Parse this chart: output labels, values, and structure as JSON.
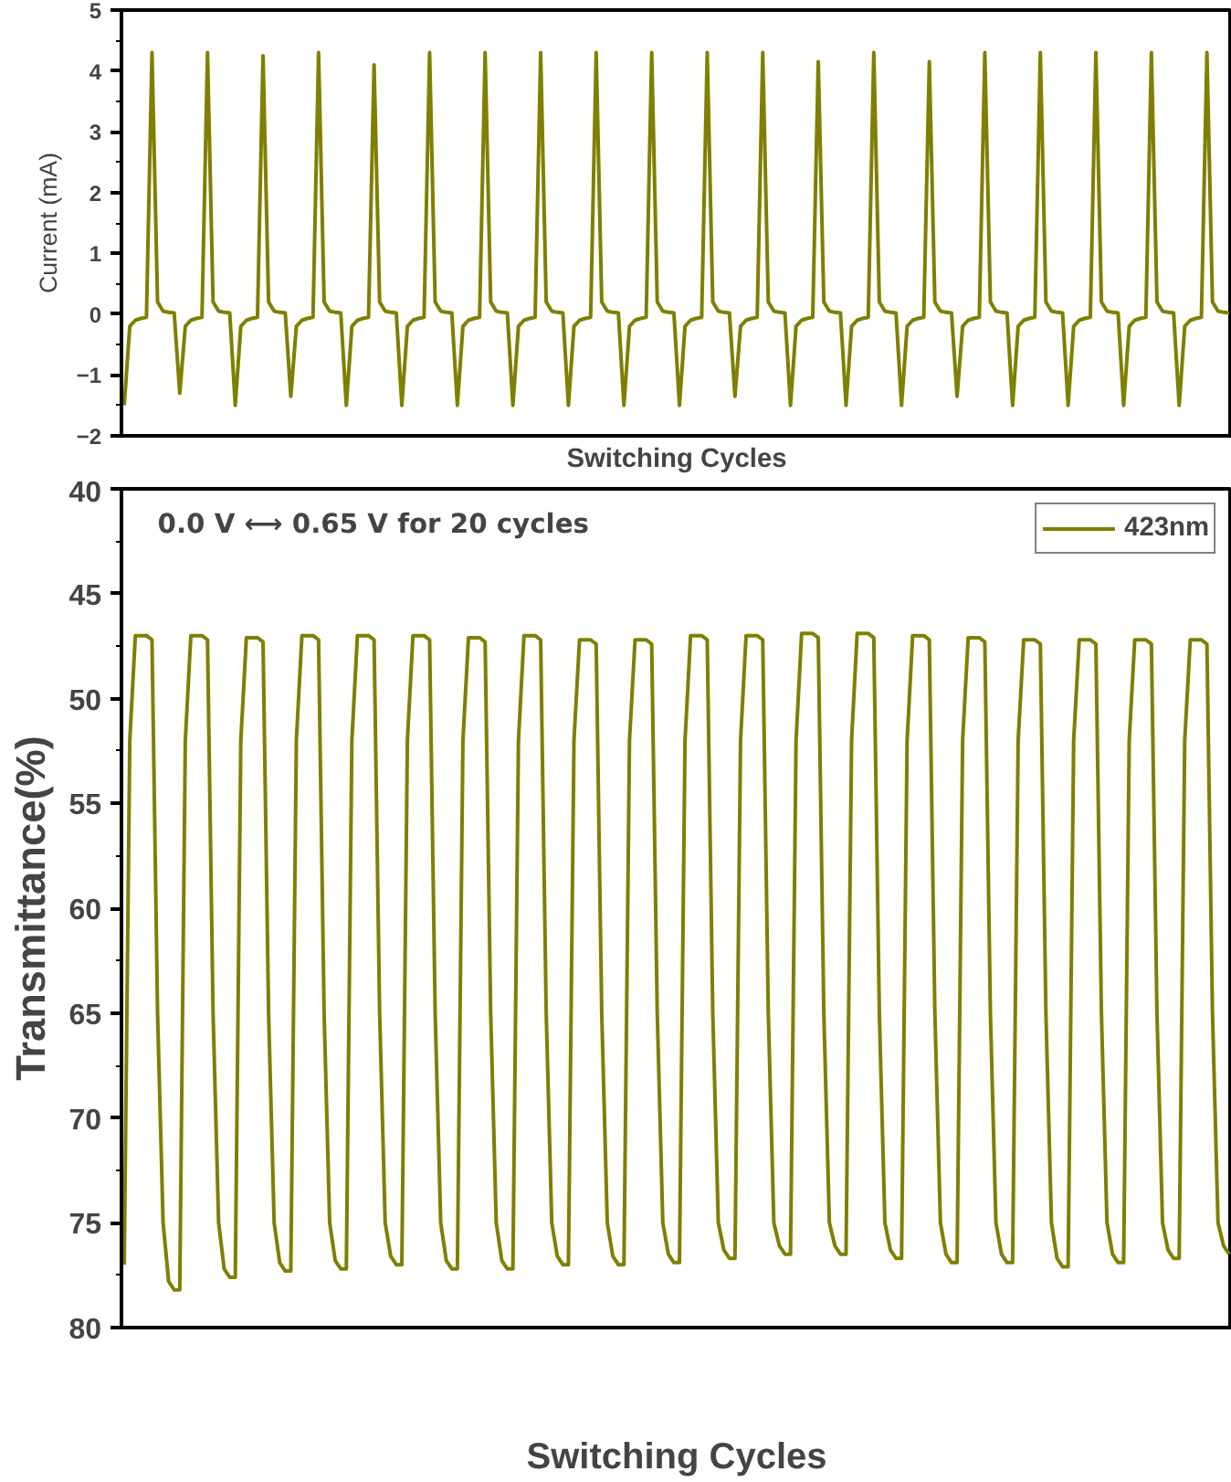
{
  "chart_data": [
    {
      "type": "line",
      "xlabel": "Switching Cycles",
      "ylabel": "Current (mA)",
      "ylim": [
        -2,
        5
      ],
      "yticks": [
        -2,
        -1,
        0,
        1,
        2,
        3,
        4,
        5
      ],
      "grid": false,
      "legend": false,
      "categories": [
        null,
        null,
        null,
        null,
        null,
        null,
        null,
        null,
        null,
        null,
        null,
        null,
        null,
        null,
        null,
        null,
        null,
        null,
        null,
        null,
        null,
        null,
        null,
        null,
        null,
        null,
        null,
        null,
        null,
        null,
        null,
        null,
        null,
        null,
        null,
        null,
        null,
        null,
        null,
        null,
        null,
        null,
        null,
        null,
        null,
        null,
        null,
        null,
        null,
        null,
        null,
        null,
        null,
        null,
        null,
        null,
        null,
        null,
        null,
        null,
        null,
        null,
        null,
        null,
        null,
        null,
        null,
        null,
        null,
        null,
        null,
        null,
        null,
        null,
        null,
        null,
        null,
        null,
        null,
        null,
        null,
        null,
        null,
        null,
        null,
        null,
        null,
        null,
        null,
        null,
        null,
        null,
        null,
        null,
        null,
        null,
        null,
        null,
        null,
        null,
        null,
        null,
        null,
        null,
        null,
        null,
        null,
        null,
        null,
        null,
        null,
        null,
        null,
        null,
        null,
        null,
        null,
        null,
        null,
        null,
        null,
        null,
        null,
        null,
        null,
        null,
        null,
        null,
        null,
        null,
        null,
        null,
        null,
        null,
        null,
        null,
        null,
        null,
        null,
        null,
        null,
        null,
        null,
        null,
        null,
        null,
        null,
        null,
        null,
        null,
        null,
        null,
        null,
        null,
        null,
        null,
        null,
        null,
        null,
        null,
        null,
        null,
        null,
        null,
        null,
        null,
        null,
        null,
        null,
        null,
        null,
        null,
        null,
        null,
        null,
        null,
        null,
        null,
        null,
        null,
        null,
        null,
        null,
        null,
        null,
        null,
        null,
        null,
        null,
        null,
        null,
        null,
        null,
        null,
        null,
        null,
        null,
        null,
        null,
        null
      ],
      "series": [
        {
          "color": "#7f7f00",
          "values": [
            -1.5,
            -0.2,
            -0.1,
            -0.07,
            -0.05,
            4.3,
            0.2,
            0.05,
            0.03,
            0.02,
            -1.3,
            -0.2,
            -0.1,
            -0.07,
            -0.05,
            4.3,
            0.2,
            0.05,
            0.03,
            0.02,
            -1.5,
            -0.2,
            -0.1,
            -0.07,
            -0.05,
            4.25,
            0.2,
            0.05,
            0.03,
            0.02,
            -1.35,
            -0.2,
            -0.1,
            -0.07,
            -0.05,
            4.3,
            0.2,
            0.05,
            0.03,
            0.02,
            -1.5,
            -0.2,
            -0.1,
            -0.07,
            -0.05,
            4.1,
            0.2,
            0.05,
            0.03,
            0.02,
            -1.5,
            -0.2,
            -0.1,
            -0.07,
            -0.05,
            4.3,
            0.2,
            0.05,
            0.03,
            0.02,
            -1.5,
            -0.2,
            -0.1,
            -0.07,
            -0.05,
            4.3,
            0.2,
            0.05,
            0.03,
            0.02,
            -1.5,
            -0.2,
            -0.1,
            -0.07,
            -0.05,
            4.3,
            0.2,
            0.05,
            0.03,
            0.02,
            -1.5,
            -0.2,
            -0.1,
            -0.07,
            -0.05,
            4.3,
            0.2,
            0.05,
            0.03,
            0.02,
            -1.5,
            -0.2,
            -0.1,
            -0.07,
            -0.05,
            4.3,
            0.2,
            0.05,
            0.03,
            0.02,
            -1.5,
            -0.2,
            -0.1,
            -0.07,
            -0.05,
            4.3,
            0.2,
            0.05,
            0.03,
            0.02,
            -1.35,
            -0.2,
            -0.1,
            -0.07,
            -0.05,
            4.3,
            0.2,
            0.05,
            0.03,
            0.02,
            -1.5,
            -0.2,
            -0.1,
            -0.07,
            -0.05,
            4.15,
            0.2,
            0.05,
            0.03,
            0.02,
            -1.5,
            -0.2,
            -0.1,
            -0.07,
            -0.05,
            4.3,
            0.2,
            0.05,
            0.03,
            0.02,
            -1.5,
            -0.2,
            -0.1,
            -0.07,
            -0.05,
            4.15,
            0.2,
            0.05,
            0.03,
            0.02,
            -1.35,
            -0.2,
            -0.1,
            -0.07,
            -0.05,
            4.3,
            0.2,
            0.05,
            0.03,
            0.02,
            -1.5,
            -0.2,
            -0.1,
            -0.07,
            -0.05,
            4.3,
            0.2,
            0.05,
            0.03,
            0.02,
            -1.5,
            -0.2,
            -0.1,
            -0.07,
            -0.05,
            4.3,
            0.2,
            0.05,
            0.03,
            0.02,
            -1.5,
            -0.2,
            -0.1,
            -0.07,
            -0.05,
            4.3,
            0.2,
            0.05,
            0.03,
            0.02,
            -1.5,
            -0.2,
            -0.1,
            -0.07,
            -0.05,
            4.3,
            0.2,
            0.05,
            0.03,
            0.02
          ]
        }
      ]
    },
    {
      "type": "line",
      "xlabel": "Switching Cycles",
      "ylabel": "Transmittance(%)",
      "ylim": [
        80,
        40
      ],
      "yticks": [
        40,
        45,
        50,
        55,
        60,
        65,
        70,
        75,
        80
      ],
      "grid": false,
      "legend": "top right",
      "annotations": [
        "0.0 V ⟷ 0.65 V for 20 cycles"
      ],
      "categories": [
        null,
        null,
        null,
        null,
        null,
        null,
        null,
        null,
        null,
        null,
        null,
        null,
        null,
        null,
        null,
        null,
        null,
        null,
        null,
        null,
        null,
        null,
        null,
        null,
        null,
        null,
        null,
        null,
        null,
        null,
        null,
        null,
        null,
        null,
        null,
        null,
        null,
        null,
        null,
        null,
        null,
        null,
        null,
        null,
        null,
        null,
        null,
        null,
        null,
        null,
        null,
        null,
        null,
        null,
        null,
        null,
        null,
        null,
        null,
        null,
        null,
        null,
        null,
        null,
        null,
        null,
        null,
        null,
        null,
        null,
        null,
        null,
        null,
        null,
        null,
        null,
        null,
        null,
        null,
        null,
        null,
        null,
        null,
        null,
        null,
        null,
        null,
        null,
        null,
        null,
        null,
        null,
        null,
        null,
        null,
        null,
        null,
        null,
        null,
        null,
        null,
        null,
        null,
        null,
        null,
        null,
        null,
        null,
        null,
        null,
        null,
        null,
        null,
        null,
        null,
        null,
        null,
        null,
        null,
        null,
        null,
        null,
        null,
        null,
        null,
        null,
        null,
        null,
        null,
        null,
        null,
        null,
        null,
        null,
        null,
        null,
        null,
        null,
        null,
        null,
        null,
        null,
        null,
        null,
        null,
        null,
        null,
        null,
        null,
        null,
        null,
        null,
        null,
        null,
        null,
        null,
        null,
        null,
        null,
        null,
        null,
        null,
        null,
        null,
        null,
        null,
        null,
        null,
        null,
        null,
        null,
        null,
        null,
        null,
        null,
        null,
        null,
        null,
        null,
        null,
        null,
        null,
        null,
        null,
        null,
        null,
        null,
        null,
        null,
        null,
        null,
        null,
        null,
        null,
        null,
        null,
        null,
        null,
        null,
        null
      ],
      "series": [
        {
          "name": "423nm",
          "color": "#7f7f00",
          "values": [
            77,
            52,
            47.0,
            47.0,
            47.0,
            47.2,
            65,
            75,
            77.8,
            78.2,
            78.2,
            52,
            47.0,
            47.0,
            47.0,
            47.2,
            65,
            75,
            77.2,
            77.6,
            77.6,
            52,
            47.1,
            47.1,
            47.1,
            47.3,
            65,
            75,
            76.9,
            77.3,
            77.3,
            52,
            47.0,
            47.0,
            47.0,
            47.2,
            65,
            75,
            76.8,
            77.2,
            77.2,
            52,
            47.0,
            47.0,
            47.0,
            47.2,
            65,
            75,
            76.6,
            77.0,
            77.0,
            52,
            47.0,
            47.0,
            47.0,
            47.2,
            65,
            75,
            76.8,
            77.2,
            77.2,
            52,
            47.1,
            47.1,
            47.1,
            47.3,
            65,
            75,
            76.8,
            77.2,
            77.2,
            52,
            47.0,
            47.0,
            47.0,
            47.2,
            65,
            75,
            76.6,
            77.0,
            77.0,
            52,
            47.2,
            47.2,
            47.2,
            47.4,
            65,
            75,
            76.6,
            77.0,
            77.0,
            52,
            47.2,
            47.2,
            47.2,
            47.4,
            65,
            75,
            76.5,
            76.9,
            76.9,
            52,
            47.0,
            47.0,
            47.0,
            47.2,
            65,
            75,
            76.3,
            76.7,
            76.7,
            52,
            47.0,
            47.0,
            47.0,
            47.2,
            65,
            75,
            76.1,
            76.5,
            76.5,
            52,
            46.9,
            46.9,
            46.9,
            47.1,
            65,
            75,
            76.1,
            76.5,
            76.5,
            52,
            46.9,
            46.9,
            46.9,
            47.1,
            65,
            75,
            76.3,
            76.7,
            76.7,
            52,
            47.0,
            47.0,
            47.0,
            47.2,
            65,
            75,
            76.5,
            76.9,
            76.9,
            52,
            47.1,
            47.1,
            47.1,
            47.3,
            65,
            75,
            76.5,
            76.9,
            76.9,
            52,
            47.2,
            47.2,
            47.2,
            47.4,
            65,
            75,
            76.7,
            77.1,
            77.1,
            52,
            47.2,
            47.2,
            47.2,
            47.4,
            65,
            75,
            76.5,
            76.9,
            76.9,
            52,
            47.2,
            47.2,
            47.2,
            47.4,
            65,
            75,
            76.3,
            76.7,
            76.7,
            52,
            47.2,
            47.2,
            47.2,
            47.4,
            65,
            75,
            76.1,
            76.5
          ]
        }
      ]
    }
  ]
}
